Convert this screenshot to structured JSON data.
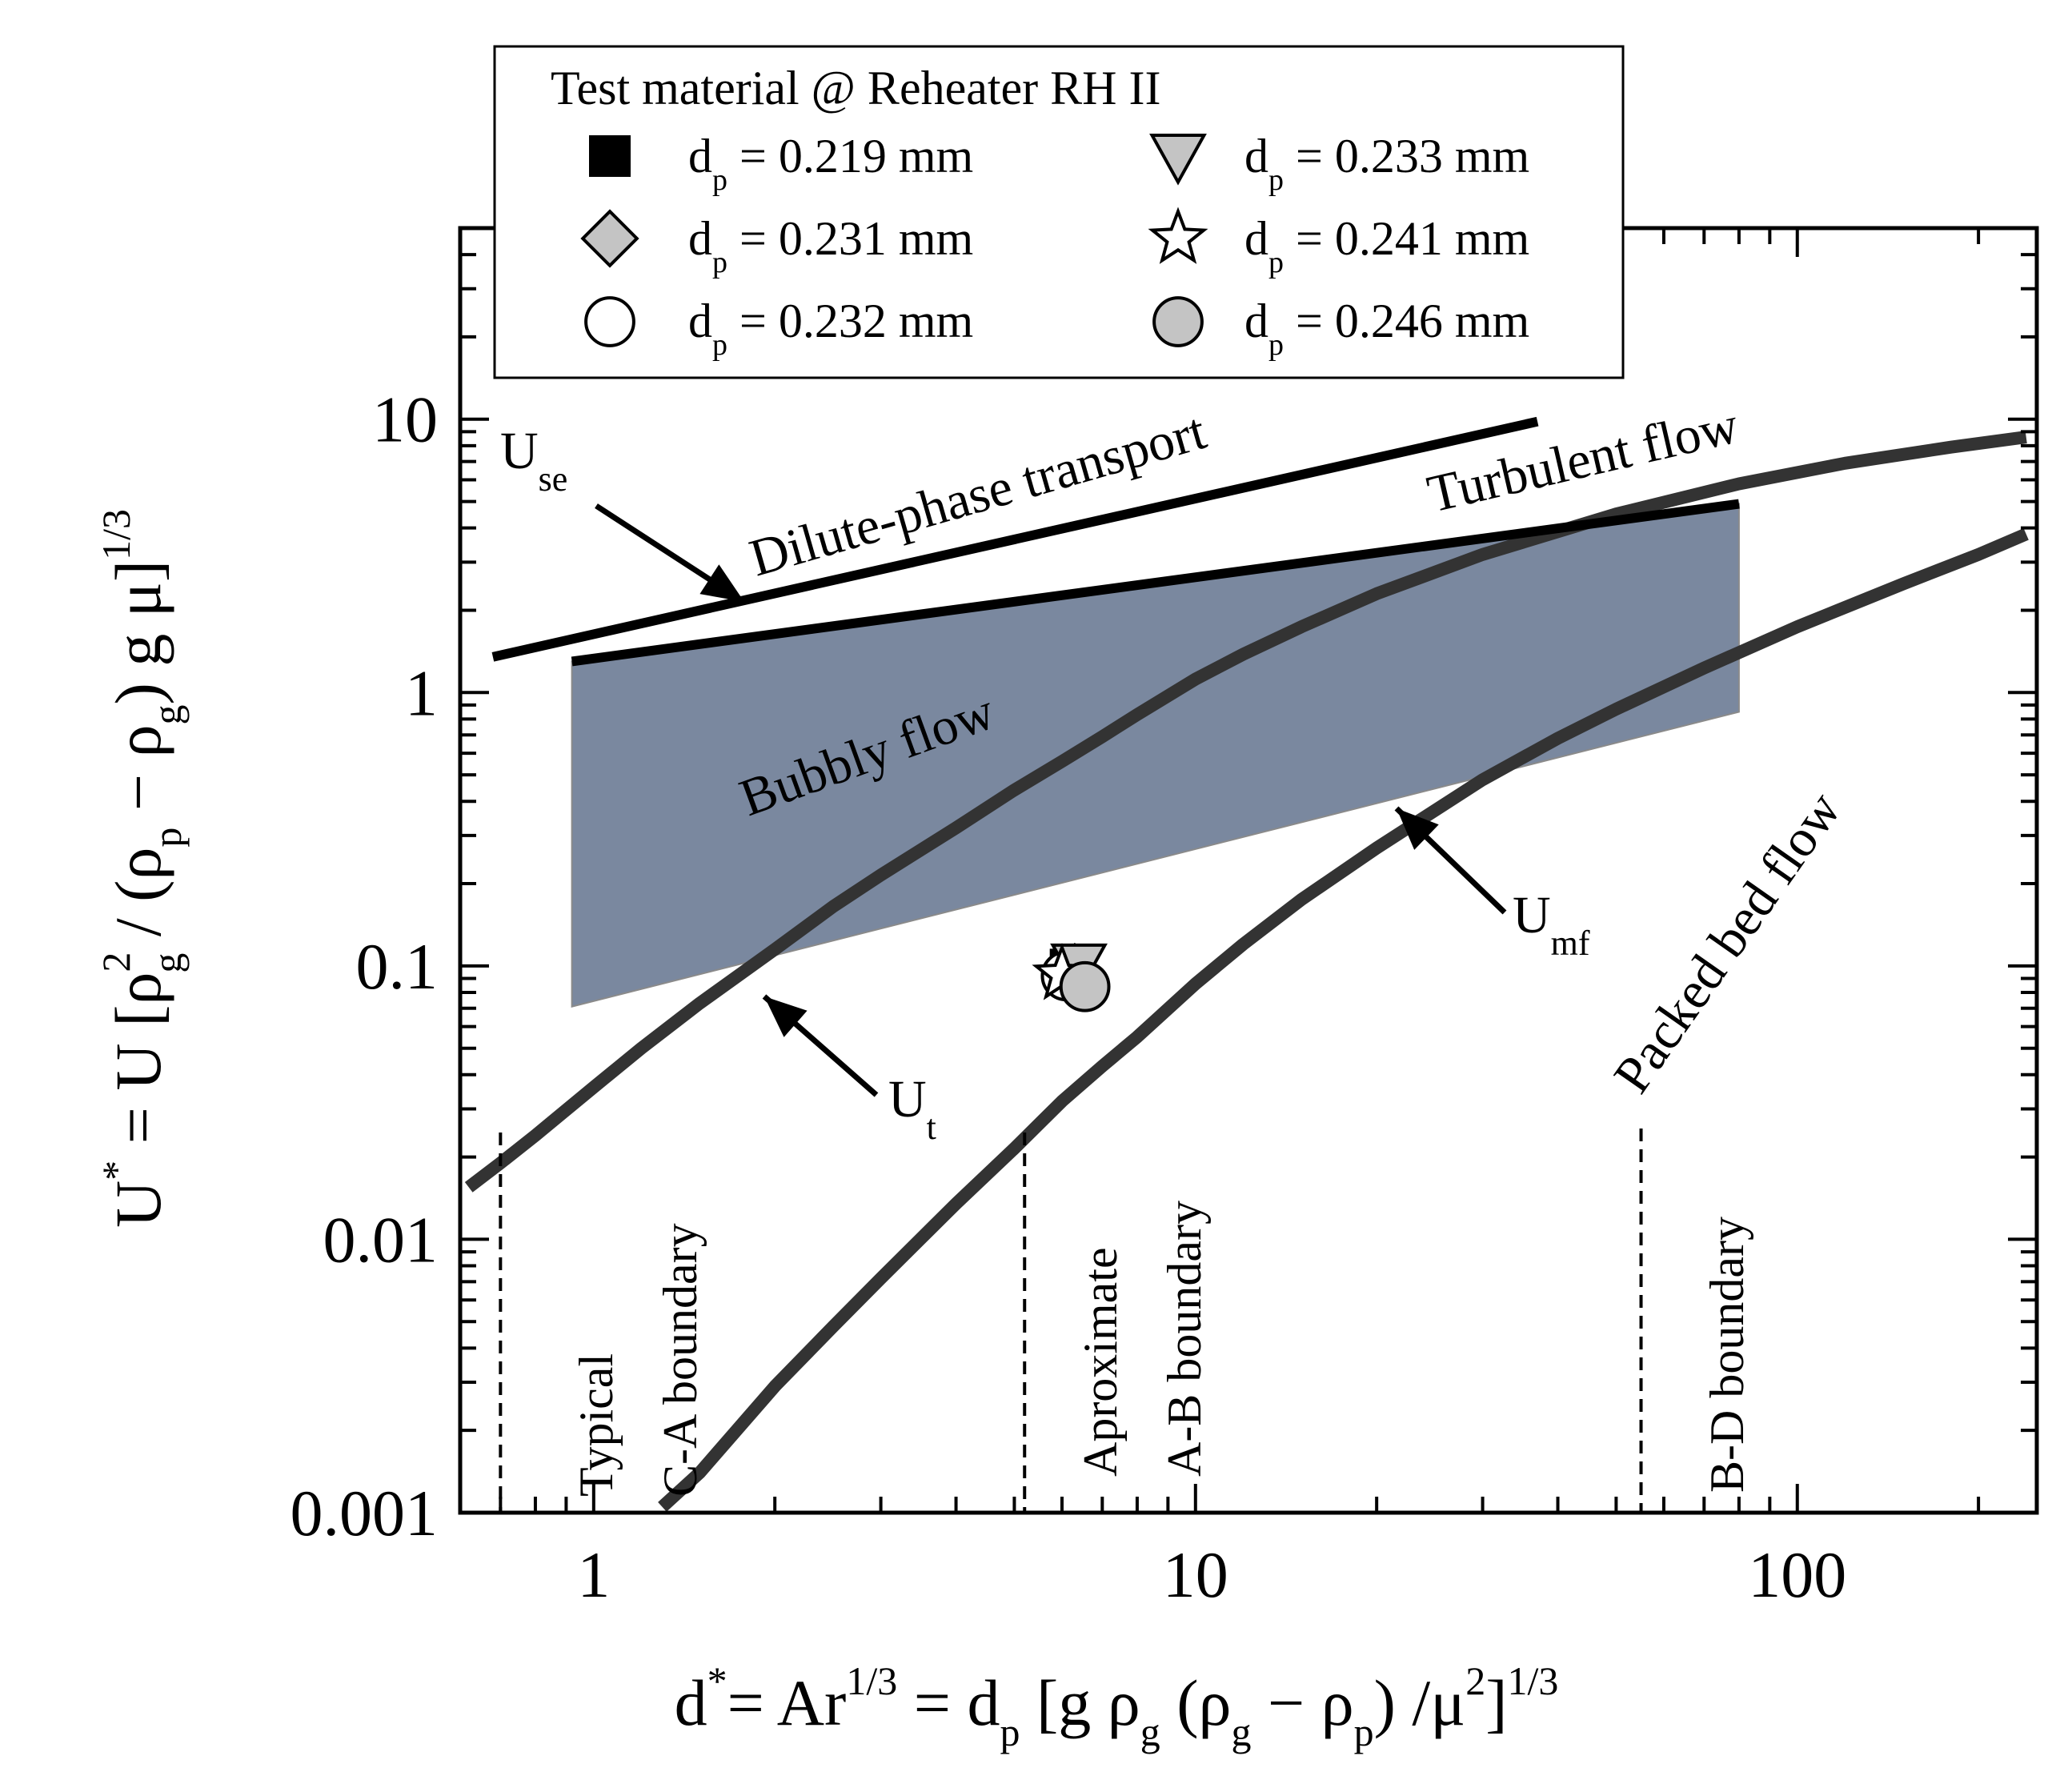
{
  "chart_data": {
    "type": "line",
    "title": "",
    "xscale": "log",
    "yscale": "log",
    "xlim": [
      0.6,
      250
    ],
    "ylim": [
      0.001,
      50
    ],
    "xlabel": {
      "prefix": "d",
      "prefix_sup": "*",
      "main": "= Ar",
      "main_sup": "1/3",
      "eq": " = d",
      "eq_sub": "p",
      "bracket": " [g ρ",
      "rho_g_sub": "g",
      "paren": " (ρ",
      "rho_g2_sub": "g",
      "minus": " − ρ",
      "rho_p_sub": "p",
      "close": ") /μ",
      "mu_sup": "2",
      "end": "]",
      "end_sup": "1/3"
    },
    "ylabel": {
      "prefix": "U",
      "prefix_sup": "*",
      "main": " = U [ρ",
      "rho_g_sup": "2",
      "rho_g_sub": "g",
      "slash": " / (ρ",
      "rho_p_sub": "p",
      "minus": " − ρ",
      "rho_g2_sub": "g",
      "close": ") g μ]",
      "end_sup": "1/3"
    },
    "x_ticks": [
      {
        "value": 1,
        "label": "1"
      },
      {
        "value": 10,
        "label": "10"
      },
      {
        "value": 100,
        "label": "100"
      }
    ],
    "y_ticks": [
      {
        "value": 0.001,
        "label": "0.001"
      },
      {
        "value": 0.01,
        "label": "0.01"
      },
      {
        "value": 0.1,
        "label": "0.1"
      },
      {
        "value": 1,
        "label": "1"
      },
      {
        "value": 10,
        "label": "10"
      }
    ],
    "series": [
      {
        "name": "U_t",
        "color": "#333333",
        "x": [
          0.62,
          0.7,
          0.8,
          1.0,
          1.2,
          1.5,
          2.0,
          2.5,
          3.0,
          4.0,
          5.0,
          6.0,
          7.0,
          8.0,
          10.0,
          12.0,
          15.0,
          20.0,
          30.0,
          50.0,
          80.0,
          120.0,
          180.0,
          240.0
        ],
        "y": [
          0.0155,
          0.019,
          0.024,
          0.036,
          0.05,
          0.073,
          0.115,
          0.165,
          0.215,
          0.32,
          0.44,
          0.56,
          0.69,
          0.83,
          1.12,
          1.38,
          1.74,
          2.3,
          3.2,
          4.5,
          5.8,
          6.9,
          7.9,
          8.6
        ]
      },
      {
        "name": "U_mf",
        "color": "#333333",
        "x": [
          1.3,
          1.5,
          2.0,
          2.5,
          3.0,
          4.0,
          5.0,
          6.0,
          7.0,
          8.0,
          10.0,
          12.0,
          15.0,
          20.0,
          30.0,
          40.0,
          50.0,
          70.0,
          100.0,
          150.0,
          200.0,
          240.0
        ],
        "y": [
          0.00105,
          0.0014,
          0.0029,
          0.0048,
          0.0072,
          0.0135,
          0.0215,
          0.032,
          0.043,
          0.055,
          0.086,
          0.12,
          0.175,
          0.27,
          0.48,
          0.68,
          0.87,
          1.23,
          1.74,
          2.5,
          3.2,
          3.8
        ]
      },
      {
        "name": "U_se",
        "color": "#000000",
        "x": [
          0.68,
          37.0
        ],
        "y": [
          1.35,
          9.8
        ]
      },
      {
        "name": "Turbulent boundary",
        "color": "#000000",
        "x": [
          0.92,
          80.0
        ],
        "y": [
          1.3,
          4.9
        ]
      }
    ],
    "bubbly_region": {
      "name": "Bubbly flow",
      "color": "#7a889f",
      "x": [
        0.92,
        80.0,
        80.0,
        0.92
      ],
      "y": [
        1.3,
        4.9,
        0.85,
        0.071
      ]
    },
    "boundaries": [
      {
        "x": 0.7,
        "label_lines": [
          "Typical",
          "C-A boundary"
        ]
      },
      {
        "x": 5.2,
        "label_lines": [
          "Aproximate",
          "A-B boundary"
        ]
      },
      {
        "x": 55.0,
        "label_lines": [
          "B-D boundary"
        ]
      }
    ],
    "points": [
      {
        "label": "dp = 0.219 mm",
        "marker": "square",
        "x": 6.2,
        "y": 0.097
      },
      {
        "label": "dp = 0.231 mm",
        "marker": "diamond",
        "x": 6.3,
        "y": 0.095
      },
      {
        "label": "dp = 0.232 mm",
        "marker": "circle-open",
        "x": 6.1,
        "y": 0.092
      },
      {
        "label": "dp = 0.233 mm",
        "marker": "triangle-down",
        "x": 6.4,
        "y": 0.1
      },
      {
        "label": "dp = 0.241 mm",
        "marker": "star",
        "x": 6.0,
        "y": 0.093
      },
      {
        "label": "dp = 0.246 mm",
        "marker": "circle-filled",
        "x": 6.55,
        "y": 0.084
      }
    ],
    "region_labels": {
      "dilute": "Dilute-phase transport",
      "turbulent": "Turbulent flow",
      "bubbly": "Bubbly flow",
      "packed": "Packed bed flow"
    },
    "curve_labels": {
      "use": {
        "main": "U",
        "sub": "se"
      },
      "umf": {
        "main": "U",
        "sub": "mf"
      },
      "ut": {
        "main": "U",
        "sub": "t"
      }
    },
    "legend": {
      "title": "Test material @ Reheater RH II",
      "position": "top-center",
      "entries": [
        {
          "marker": "square",
          "d": "d",
          "sub": "p",
          "text": " = 0.219 mm"
        },
        {
          "marker": "triangle-down",
          "d": "d",
          "sub": "p",
          "text": " = 0.233 mm"
        },
        {
          "marker": "diamond",
          "d": "d",
          "sub": "p",
          "text": " = 0.231 mm"
        },
        {
          "marker": "star",
          "d": "d",
          "sub": "p",
          "text": " = 0.241 mm"
        },
        {
          "marker": "circle-open",
          "d": "d",
          "sub": "p",
          "text": " = 0.232 mm"
        },
        {
          "marker": "circle-filled",
          "d": "d",
          "sub": "p",
          "text": " = 0.246 mm"
        }
      ]
    }
  }
}
